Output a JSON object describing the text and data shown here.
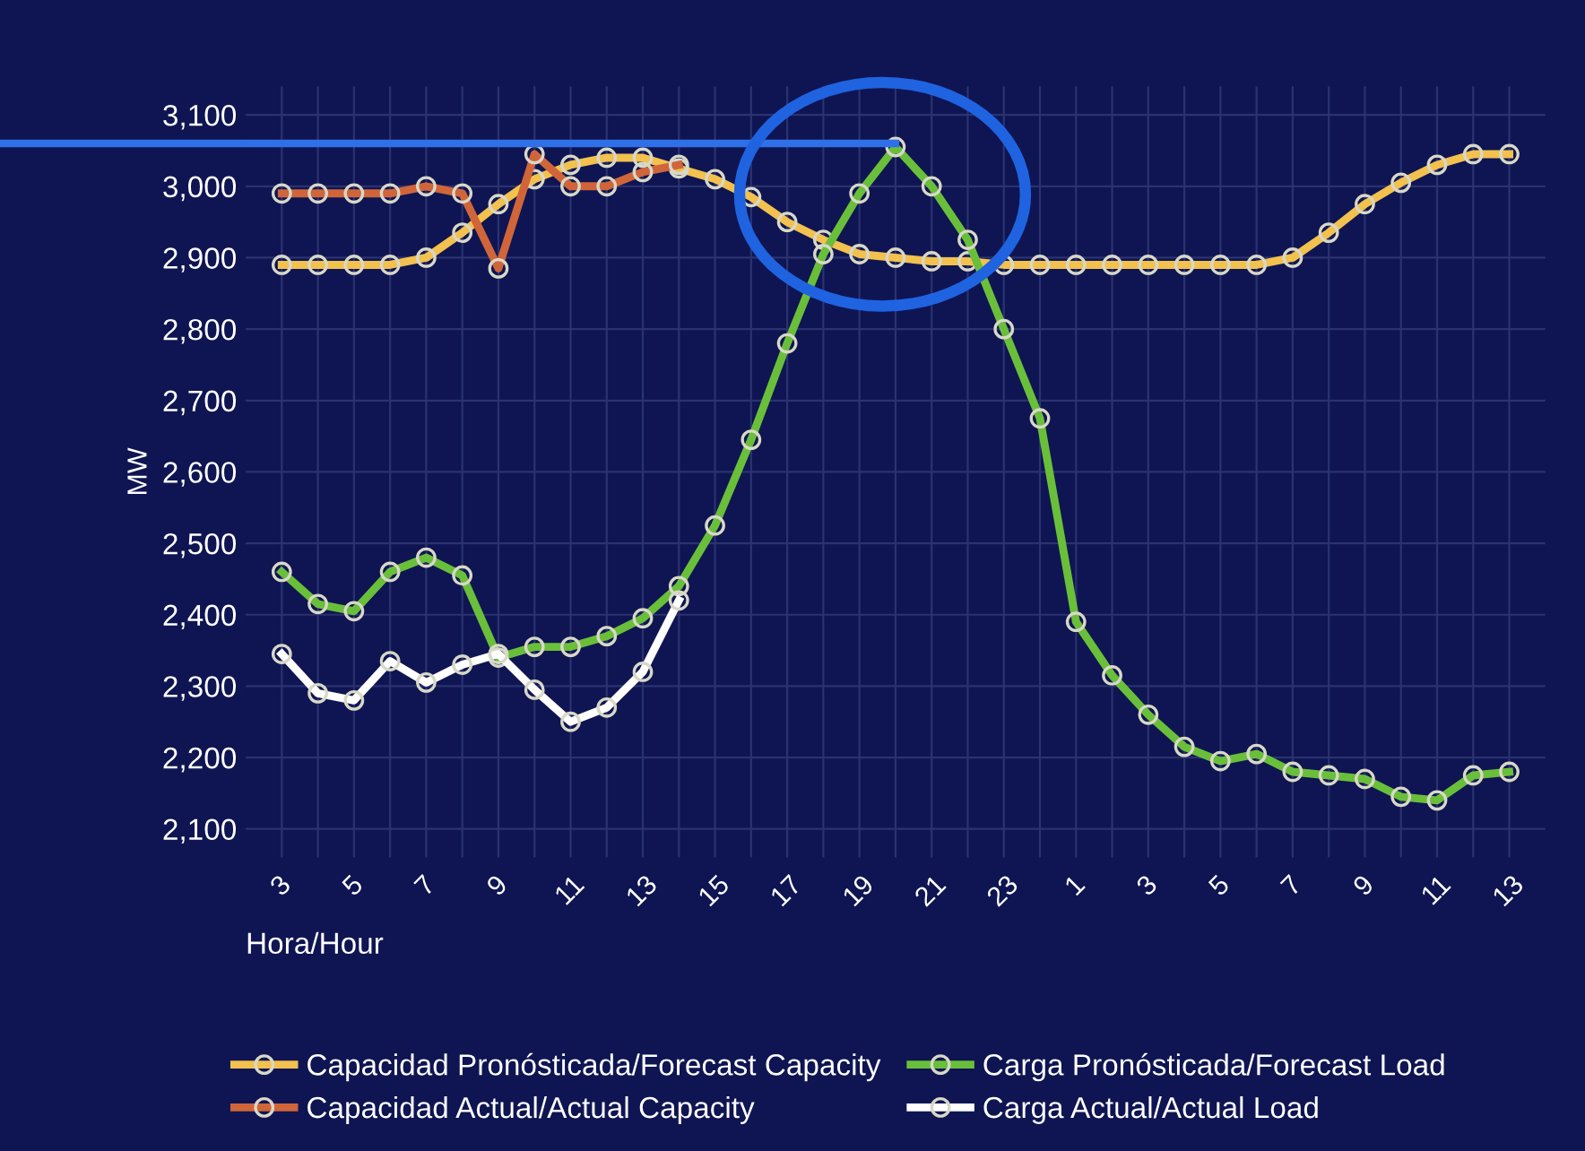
{
  "chart_data": {
    "type": "line",
    "xlabel": "Hora/Hour",
    "ylabel": "MW",
    "categories": [
      "3",
      null,
      "5",
      null,
      "7",
      null,
      "9",
      null,
      "11",
      null,
      "13",
      null,
      "15",
      null,
      "17",
      null,
      "19",
      null,
      "21",
      null,
      "23",
      null,
      "1",
      null,
      "3",
      null,
      "5",
      null,
      "7",
      null,
      "9",
      null,
      "11",
      null,
      "13"
    ],
    "series": [
      {
        "name": "Capacidad Pronósticada/Forecast Capacity",
        "color": "#f2c14e",
        "values": [
          2890,
          2890,
          2890,
          2890,
          2900,
          2935,
          2975,
          3010,
          3030,
          3040,
          3040,
          3025,
          3010,
          2985,
          2950,
          2925,
          2905,
          2900,
          2895,
          2895,
          2890,
          2890,
          2890,
          2890,
          2890,
          2890,
          2890,
          2890,
          2900,
          2935,
          2975,
          3005,
          3030,
          3045,
          3045
        ]
      },
      {
        "name": "Capacidad Actual/Actual Capacity",
        "color": "#d0653a",
        "values": [
          2990,
          2990,
          2990,
          2990,
          3000,
          2990,
          2885,
          3045,
          3000,
          3000,
          3020,
          3030,
          null,
          null,
          null,
          null,
          null,
          null,
          null,
          null,
          null,
          null,
          null,
          null,
          null,
          null,
          null,
          null,
          null,
          null,
          null,
          null,
          null,
          null,
          null
        ]
      },
      {
        "name": "Carga Pronósticada/Forecast Load",
        "color": "#6abf3a",
        "values": [
          2460,
          2415,
          2405,
          2460,
          2480,
          2455,
          2340,
          2355,
          2355,
          2370,
          2395,
          2440,
          2525,
          2645,
          2780,
          2905,
          2990,
          3055,
          3000,
          2925,
          2800,
          2675,
          2390,
          2315,
          2260,
          2215,
          2195,
          2205,
          2180,
          2175,
          2170,
          2145,
          2140,
          2175,
          2180
        ]
      },
      {
        "name": "Carga Actual/Actual Load",
        "color": "#ffffff",
        "values": [
          2345,
          2290,
          2280,
          2335,
          2305,
          2330,
          2345,
          2295,
          2250,
          2270,
          2320,
          2420,
          null,
          null,
          null,
          null,
          null,
          null,
          null,
          null,
          null,
          null,
          null,
          null,
          null,
          null,
          null,
          null,
          null,
          null,
          null,
          null,
          null,
          null,
          null
        ]
      }
    ],
    "ylim": [
      2060,
      3140
    ],
    "yticks": [
      {
        "value": 2100,
        "label": "2,100"
      },
      {
        "value": 2200,
        "label": "2,200"
      },
      {
        "value": 2300,
        "label": "2,300"
      },
      {
        "value": 2400,
        "label": "2,400"
      },
      {
        "value": 2500,
        "label": "2,500"
      },
      {
        "value": 2600,
        "label": "2,600"
      },
      {
        "value": 2700,
        "label": "2,700"
      },
      {
        "value": 2800,
        "label": "2,800"
      },
      {
        "value": 2900,
        "label": "2,900"
      },
      {
        "value": 3000,
        "label": "3,000"
      },
      {
        "value": 3100,
        "label": "3,100"
      }
    ],
    "ref_lines": [
      {
        "axis": "y",
        "value": 3060,
        "color": "#2f6fe8"
      }
    ],
    "grid": true,
    "legend": "bottom",
    "marker": "circle",
    "line_style": "solid"
  }
}
